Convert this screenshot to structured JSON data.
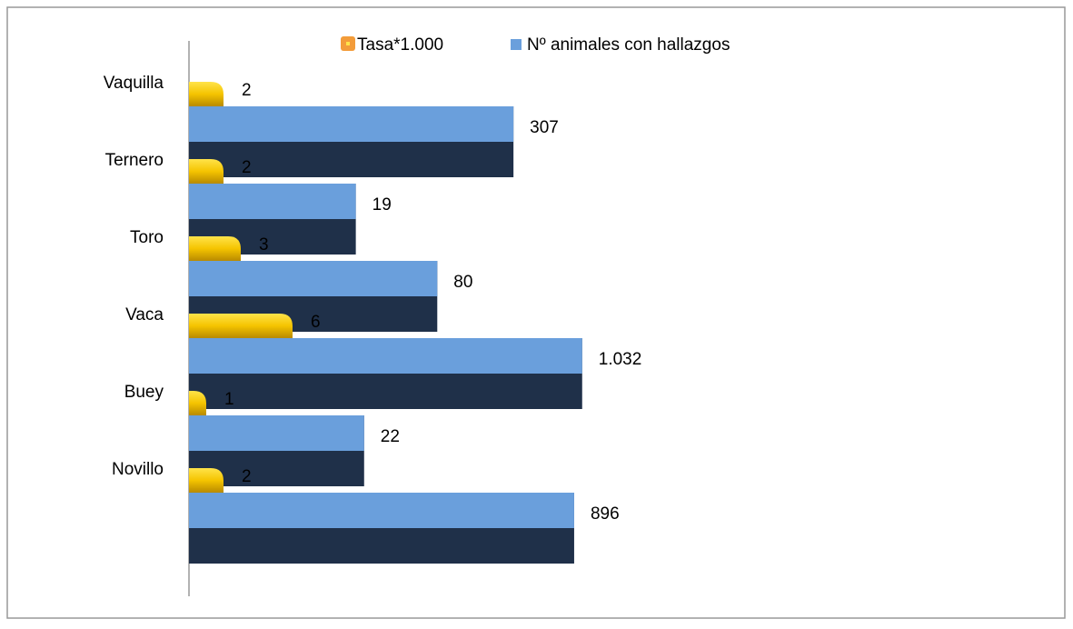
{
  "chart_data": {
    "type": "bar",
    "orientation": "horizontal",
    "categories": [
      "Vaquilla",
      "Ternero",
      "Toro",
      "Vaca",
      "Buey",
      "Novillo"
    ],
    "series": [
      {
        "name": "Tasa*1.000",
        "color": "#f5c400",
        "values": [
          2,
          2,
          3,
          6,
          1,
          2
        ]
      },
      {
        "name": "Nº animales con hallazgos",
        "color": "#6a9fdc",
        "xscale": "log",
        "values": [
          307,
          19,
          80,
          1032,
          22,
          896
        ],
        "value_labels": [
          "307",
          "19",
          "80",
          "1.032",
          "22",
          "896"
        ]
      }
    ],
    "legend": "top"
  }
}
